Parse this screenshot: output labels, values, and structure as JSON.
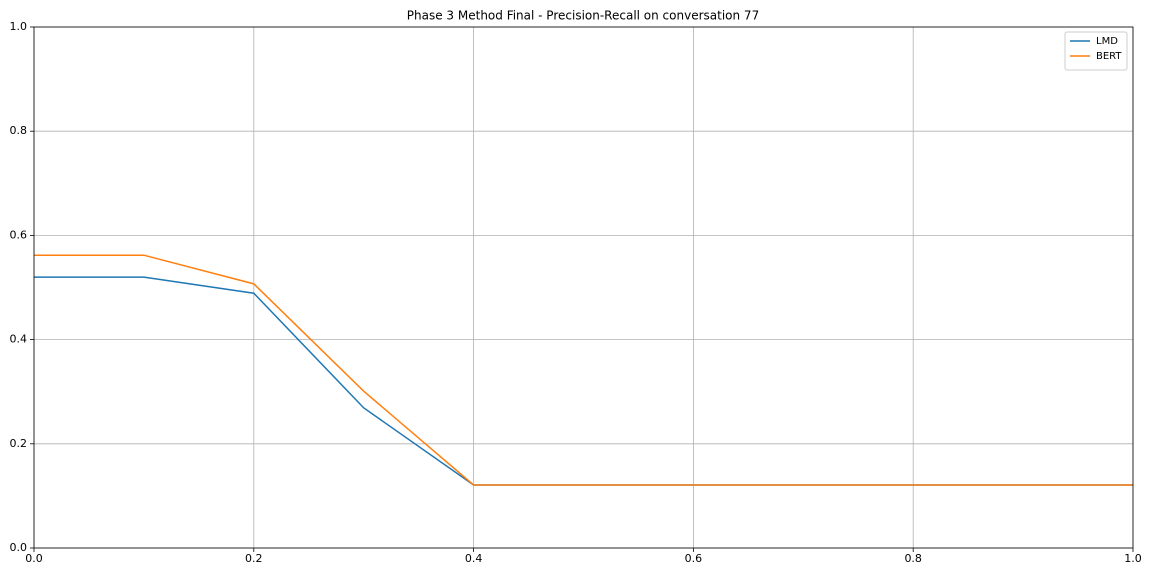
{
  "chart_data": {
    "type": "line",
    "title": "Phase 3 Method Final - Precision-Recall on conversation 77",
    "x": [
      0,
      0.1,
      0.2,
      0.3,
      0.4,
      0.5,
      0.6,
      0.7,
      0.8,
      0.9,
      1.0
    ],
    "series": [
      {
        "name": "LMD",
        "color": "#1f77b4",
        "values": [
          0.52,
          0.52,
          0.489,
          0.269,
          0.121,
          0.121,
          0.121,
          0.121,
          0.121,
          0.121,
          0.121
        ]
      },
      {
        "name": "BERT",
        "color": "#ff7f0e",
        "values": [
          0.562,
          0.562,
          0.507,
          0.301,
          0.121,
          0.121,
          0.121,
          0.121,
          0.121,
          0.121,
          0.121
        ]
      }
    ],
    "xlim": [
      0,
      1.0
    ],
    "ylim": [
      0,
      1.0
    ],
    "xticks": [
      {
        "value": 0,
        "label": "0.0"
      },
      0.2,
      0.4,
      0.6,
      0.8,
      {
        "value": 1.0,
        "label": "1.0"
      }
    ],
    "yticks": [
      {
        "value": 0,
        "label": "0.0"
      },
      0.2,
      0.4,
      0.6,
      0.8,
      {
        "value": 1.0,
        "label": "1.0"
      }
    ],
    "grid": true,
    "legend": "upper right"
  }
}
